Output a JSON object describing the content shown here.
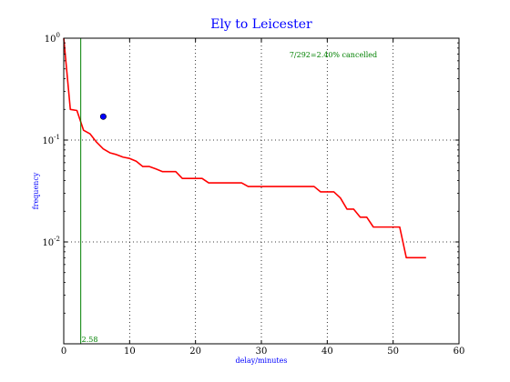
{
  "chart_data": {
    "type": "line",
    "title": "Ely to Leicester",
    "xlabel": "delay/minutes",
    "ylabel": "frequency",
    "xlim": [
      0,
      60
    ],
    "ylim": [
      0.001,
      1.0
    ],
    "yscale": "log",
    "grid": true,
    "xticks": [
      0,
      10,
      20,
      30,
      40,
      50,
      60
    ],
    "xtick_labels": [
      "0",
      "10",
      "20",
      "30",
      "40",
      "50",
      "60"
    ],
    "yticks": [
      1,
      0.1,
      0.01
    ],
    "ytick_labels": [
      {
        "base": "10",
        "exp": "0"
      },
      {
        "base": "10",
        "exp": "-1"
      },
      {
        "base": "10",
        "exp": "-2"
      }
    ],
    "series": [
      {
        "color": "#ff0000",
        "x": [
          0,
          1,
          2,
          3,
          4,
          5,
          6,
          7,
          8,
          9,
          10,
          11,
          12,
          13,
          14,
          15,
          16,
          17,
          18,
          19,
          20,
          21,
          22,
          23,
          24,
          25,
          26,
          27,
          28,
          29,
          30,
          31,
          32,
          33,
          34,
          35,
          36,
          37,
          38,
          39,
          40,
          41,
          42,
          43,
          44,
          45,
          46,
          47,
          48,
          49,
          50,
          51,
          52,
          53,
          54,
          55
        ],
        "y": [
          1.0,
          0.2,
          0.195,
          0.125,
          0.115,
          0.095,
          0.082,
          0.075,
          0.072,
          0.068,
          0.066,
          0.062,
          0.055,
          0.055,
          0.052,
          0.049,
          0.049,
          0.049,
          0.042,
          0.042,
          0.042,
          0.042,
          0.038,
          0.038,
          0.038,
          0.038,
          0.038,
          0.038,
          0.035,
          0.035,
          0.035,
          0.035,
          0.035,
          0.035,
          0.035,
          0.035,
          0.035,
          0.035,
          0.035,
          0.031,
          0.031,
          0.031,
          0.027,
          0.021,
          0.021,
          0.0175,
          0.0175,
          0.014,
          0.014,
          0.014,
          0.014,
          0.014,
          0.007,
          0.007,
          0.007,
          0.007
        ]
      }
    ],
    "markers": [
      {
        "x": 6,
        "y": 0.17,
        "color": "#0000ff"
      }
    ],
    "vlines": [
      {
        "x": 2.58,
        "label": "2.58",
        "color": "#008000"
      }
    ],
    "annotations": [
      {
        "text": "7/292=2.40% cancelled",
        "color": "#008000"
      }
    ]
  }
}
